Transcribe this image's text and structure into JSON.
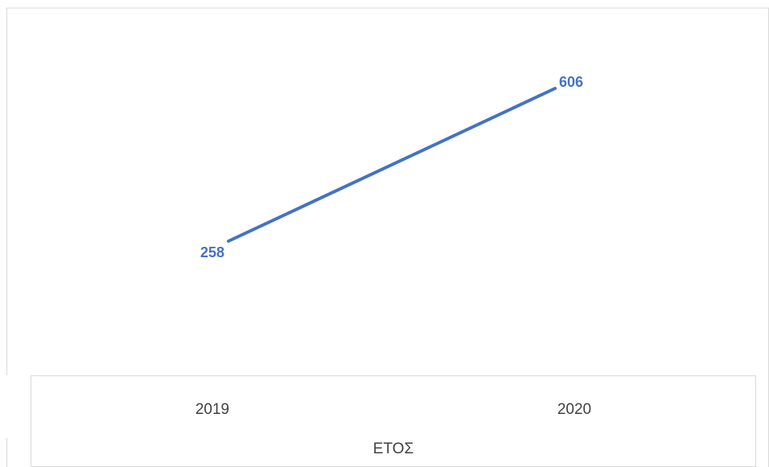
{
  "chart_data": {
    "type": "line",
    "categories": [
      "2019",
      "2020"
    ],
    "series": [
      {
        "values": [
          258,
          606
        ],
        "color": "#4472C4"
      }
    ],
    "xlabel": "ΕΤΟΣ",
    "ylabel": "",
    "title": "",
    "data_labels": [
      "258",
      "606"
    ],
    "ylim": [
      0,
      800
    ],
    "grid": false,
    "legend": "none"
  },
  "colors": {
    "line": "#4472C4",
    "label": "#4472C4",
    "axis_text": "#404040",
    "border": "#d9d9d9"
  }
}
